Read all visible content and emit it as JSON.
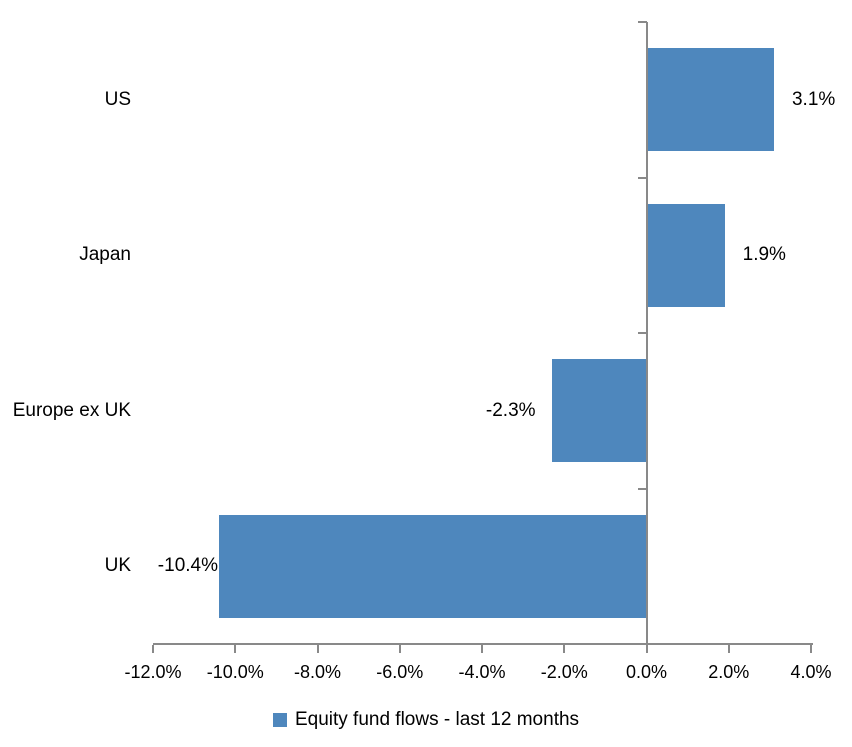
{
  "chart_data": {
    "type": "bar",
    "orientation": "horizontal",
    "title": "",
    "categories": [
      "US",
      "Japan",
      "Europe ex UK",
      "UK"
    ],
    "values": [
      3.1,
      1.9,
      -2.3,
      -10.4
    ],
    "value_labels": [
      "3.1%",
      "1.9%",
      "-2.3%",
      "-10.4%"
    ],
    "series_name": "Equity fund flows - last 12 months",
    "xlabel": "",
    "ylabel": "",
    "xlim": [
      -12,
      4
    ],
    "x_tick_values": [
      -12,
      -10,
      -8,
      -6,
      -4,
      -2,
      0,
      2,
      4
    ],
    "x_tick_labels": [
      "-12.0%",
      "-10.0%",
      "-8.0%",
      "-6.0%",
      "-4.0%",
      "-2.0%",
      "0.0%",
      "2.0%",
      "4.0%"
    ],
    "grid": false,
    "legend_position": "bottom",
    "colors": {
      "bar": "#4E87BD",
      "axis": "#898989",
      "text": "#000000",
      "background": "#ffffff"
    }
  }
}
